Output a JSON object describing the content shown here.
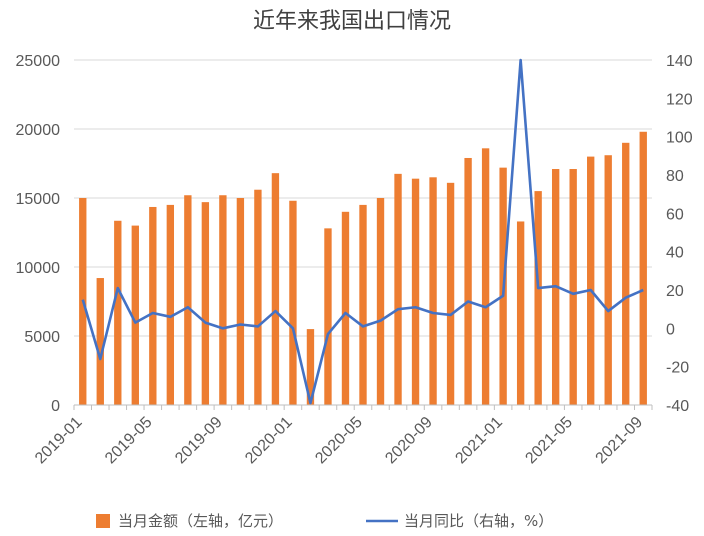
{
  "chart_data": {
    "type": "bar",
    "title": "近年来我国出口情况",
    "x": [
      "2019-01",
      "2019-02",
      "2019-03",
      "2019-04",
      "2019-05",
      "2019-06",
      "2019-07",
      "2019-08",
      "2019-09",
      "2019-10",
      "2019-11",
      "2019-12",
      "2020-01",
      "2020-02",
      "2020-03",
      "2020-04",
      "2020-05",
      "2020-06",
      "2020-07",
      "2020-08",
      "2020-09",
      "2020-10",
      "2020-11",
      "2020-12",
      "2021-01",
      "2021-02",
      "2021-03",
      "2021-04",
      "2021-05",
      "2021-06",
      "2021-07",
      "2021-08",
      "2021-09"
    ],
    "x_tick_labels": [
      "2019-01",
      "2019-05",
      "2019-09",
      "2020-01",
      "2020-05",
      "2020-09",
      "2021-01",
      "2021-05",
      "2021-09"
    ],
    "series": [
      {
        "name": "当月金额（左轴，亿元）",
        "type": "bar",
        "axis": "left",
        "color": "#ED7D31",
        "values": [
          15000,
          9200,
          13350,
          13000,
          14350,
          14500,
          15200,
          14700,
          15200,
          15000,
          15600,
          16800,
          14800,
          5500,
          12800,
          14000,
          14500,
          15000,
          16750,
          16400,
          16500,
          16100,
          17900,
          18600,
          17200,
          13300,
          15500,
          17100,
          17100,
          18000,
          18100,
          19000,
          19800
        ]
      },
      {
        "name": "当月同比（右轴，%）",
        "type": "line",
        "axis": "right",
        "color": "#4472C4",
        "values": [
          15,
          -16,
          21,
          3,
          8,
          6,
          11,
          3,
          0,
          2,
          1,
          9,
          0,
          -39,
          -3,
          8,
          1,
          4,
          10,
          11,
          8,
          7,
          14,
          11,
          17,
          140,
          21,
          22,
          18,
          20,
          9,
          16,
          20
        ]
      }
    ],
    "y_left": {
      "min": 0,
      "max": 25000,
      "ticks": [
        0,
        5000,
        10000,
        15000,
        20000,
        25000
      ]
    },
    "y_right": {
      "min": -40,
      "max": 140,
      "ticks": [
        -40,
        -20,
        0,
        20,
        40,
        60,
        80,
        100,
        120,
        140
      ]
    },
    "grid": true,
    "legend_position": "bottom"
  }
}
